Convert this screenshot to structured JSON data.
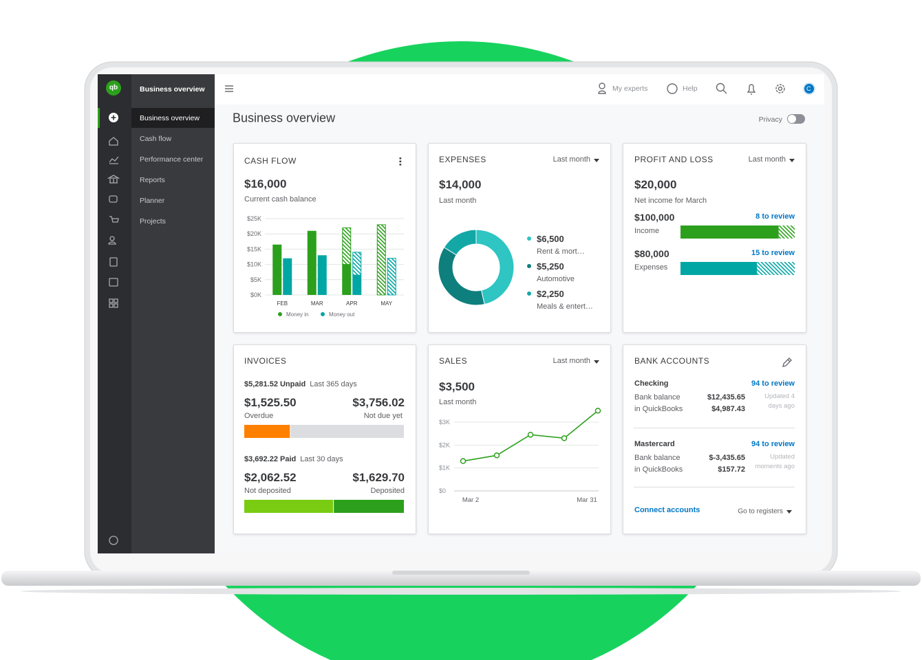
{
  "sidebar": {
    "logo": "qb",
    "title": "Business overview",
    "menu": [
      "Business overview",
      "Cash flow",
      "Performance center",
      "Reports",
      "Planner",
      "Projects"
    ]
  },
  "topbar": {
    "experts": "My experts",
    "help": "Help",
    "avatar": "C"
  },
  "header": {
    "title": "Business overview",
    "privacy": "Privacy"
  },
  "cash_flow": {
    "title": "CASH FLOW",
    "amount": "$16,000",
    "caption": "Current cash balance"
  },
  "expenses": {
    "title": "EXPENSES",
    "period": "Last month",
    "amount": "$14,000",
    "caption": "Last month"
  },
  "profit_loss": {
    "title": "PROFIT AND LOSS",
    "period": "Last month",
    "amount": "$20,000",
    "caption": "Net income for March",
    "rows": [
      {
        "amount": "$100,000",
        "label": "Income",
        "review": "8 to review",
        "reviewed": 86,
        "pending": 14,
        "color": "#2ca01c"
      },
      {
        "amount": "$80,000",
        "label": "Expenses",
        "review": "15 to review",
        "reviewed": 67,
        "pending": 33,
        "color": "#00a6a4"
      }
    ]
  },
  "invoices": {
    "title": "INVOICES",
    "groups": [
      {
        "amount": "$5,281.52 Unpaid",
        "period": "Last 365 days",
        "parts": [
          {
            "value": 1525.5,
            "label": "$1,525.50",
            "caption": "Overdue",
            "color": "#ff8000"
          },
          {
            "value": 3756.02,
            "label": "$3,756.02",
            "caption": "Not due yet",
            "color": "#dcdde0"
          }
        ]
      },
      {
        "amount": "$3,692.22 Paid",
        "period": "Last 30 days",
        "parts": [
          {
            "value": 2062.52,
            "label": "$2,062.52",
            "caption": "Not deposited",
            "color": "#7acc12"
          },
          {
            "value": 1629.7,
            "label": "$1,629.70",
            "caption": "Deposited",
            "color": "#2ca01c"
          }
        ]
      }
    ]
  },
  "sales": {
    "title": "SALES",
    "period": "Last month",
    "amount": "$3,500",
    "caption": "Last month"
  },
  "bank_accounts": {
    "title": "BANK ACCOUNTS",
    "accounts": [
      {
        "name": "Checking",
        "review": "94 to review",
        "bank_label": "Bank balance",
        "qb_label": "in QuickBooks",
        "bank": "$12,435.65",
        "qb": "$4,987.43",
        "updated": "Updated 4 days ago"
      },
      {
        "name": "Mastercard",
        "review": "94 to review",
        "bank_label": "Bank balance",
        "qb_label": "in QuickBooks",
        "bank": "$-3,435.65",
        "qb": "$157.72",
        "updated": "Updated moments ago"
      }
    ],
    "connect": "Connect accounts",
    "registers": "Go to registers"
  },
  "chart_data": [
    {
      "type": "bar",
      "categories": [
        "FEB",
        "MAR",
        "APR",
        "MAY"
      ],
      "series": [
        {
          "name": "Money in",
          "color": "#2ca01c",
          "values": [
            16.5,
            21,
            10,
            null
          ],
          "projected": [
            null,
            null,
            12,
            23
          ]
        },
        {
          "name": "Money out",
          "color": "#00a6a4",
          "values": [
            12,
            13,
            6.5,
            null
          ],
          "projected": [
            null,
            null,
            7.5,
            12
          ]
        }
      ],
      "ylim": [
        0,
        25
      ],
      "yticks": [
        {
          "value": 0,
          "label": "$0K"
        },
        {
          "value": 5,
          "label": "$5K"
        },
        {
          "value": 10,
          "label": "$10K"
        },
        {
          "value": 15,
          "label": "$15K"
        },
        {
          "value": 20,
          "label": "$20K"
        },
        {
          "value": 25,
          "label": "$25K"
        }
      ],
      "grid": true
    },
    {
      "type": "pie",
      "donut": true,
      "categories": [
        "Rent & mort…",
        "Automotive",
        "Meals & entert…"
      ],
      "values": [
        6500,
        5250,
        2250
      ],
      "value_labels": [
        "$6,500",
        "$5,250",
        "$2,250"
      ],
      "colors": [
        "#2ec5c3",
        "#0e7f7d",
        "#13a8a6"
      ]
    },
    {
      "type": "line",
      "categories": [
        "Mar 2",
        null,
        null,
        null,
        "Mar 31"
      ],
      "values": [
        1.3,
        1.55,
        2.45,
        2.3,
        3.5
      ],
      "color": "#2ca01c",
      "ylim": [
        0,
        3.6
      ],
      "yticks": [
        {
          "value": 0,
          "label": "$0"
        },
        {
          "value": 1,
          "label": "$1K"
        },
        {
          "value": 2,
          "label": "$2K"
        },
        {
          "value": 3,
          "label": "$3K"
        }
      ],
      "grid": true
    }
  ]
}
